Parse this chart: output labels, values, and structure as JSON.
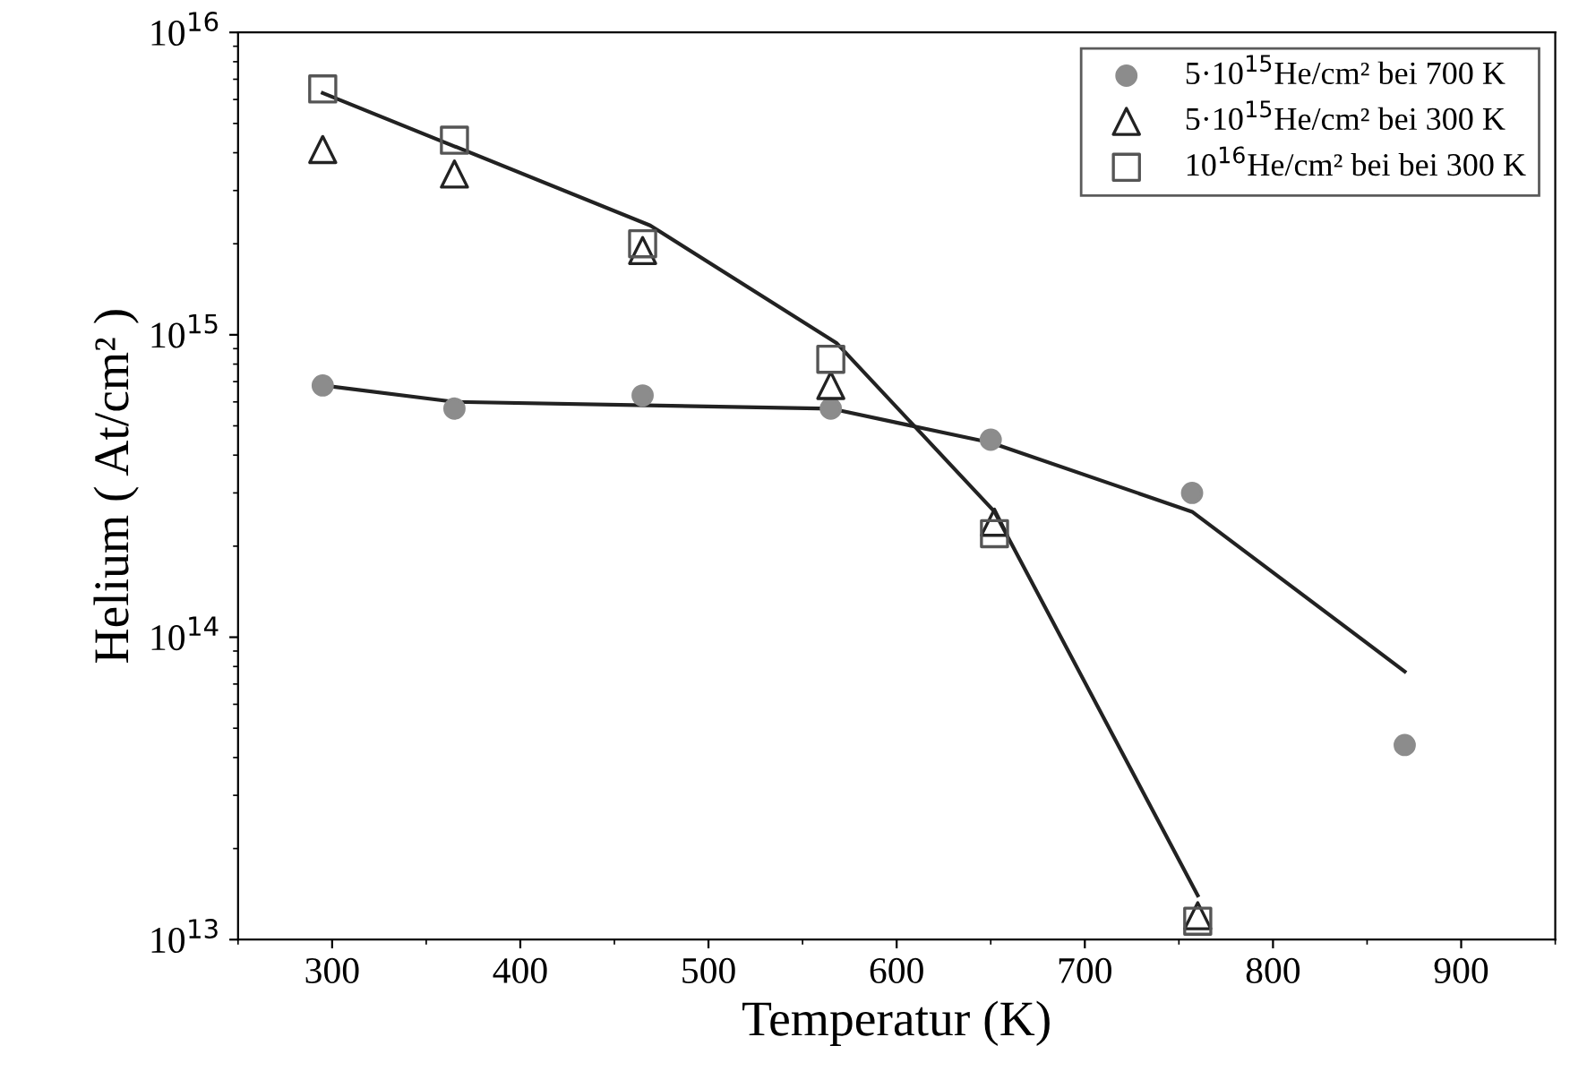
{
  "chart_data": {
    "type": "scatter",
    "xlabel": "Temperatur (K)",
    "ylabel": "Helium ( At/cm² )",
    "log": "y",
    "xlim": [
      250,
      950
    ],
    "xticks": [
      300,
      400,
      500,
      600,
      700,
      800,
      900
    ],
    "ylim": [
      10000000000000.0,
      1e+16
    ],
    "yticks": [
      {
        "value": 10000000000000.0,
        "label": "10$^{13}$"
      },
      {
        "value": 100000000000000.0,
        "label": "10$^{14}$"
      },
      {
        "value": 1000000000000000.0,
        "label": "10$^{15}$"
      },
      {
        "value": 1e+16,
        "label": "10$^{16}$"
      }
    ],
    "grid": false,
    "legend": "top right",
    "series": [
      {
        "name": "5·10$^{15}$He/cm² bei 700 K",
        "marker": "circle",
        "color": "#8c8c8c",
        "x": [
          295,
          365,
          465,
          565,
          650,
          757,
          870
        ],
        "values": [
          680000000000000.0,
          570000000000000.0,
          630000000000000.0,
          570000000000000.0,
          450000000000000.0,
          300000000000000.0,
          44000000000000.0
        ]
      },
      {
        "name": "5·10$^{15}$He/cm² bei 300 K",
        "marker": "triangle",
        "color": "#222222",
        "x": [
          295,
          365,
          465,
          565,
          652,
          760
        ],
        "values": [
          4100000000000000.0,
          3400000000000000.0,
          1900000000000000.0,
          680000000000000.0,
          240000000000000.0,
          12000000000000.0
        ]
      },
      {
        "name": "10$^{16}$He/cm² bei bei 300 K",
        "marker": "square",
        "color": "#555555",
        "x": [
          295,
          365,
          465,
          565,
          652,
          760
        ],
        "values": [
          6500000000000000.0,
          4400000000000000.0,
          2000000000000000.0,
          830000000000000.0,
          220000000000000.0,
          11500000000000.0
        ]
      },
      {
        "type": "line",
        "marker": "none",
        "color": "#222222",
        "x": [
          295,
          469,
          568,
          652,
          760
        ],
        "values": [
          6300000000000000.0,
          2300000000000000.0,
          940000000000000.0,
          260000000000000.0,
          14000000000000.0
        ]
      },
      {
        "type": "line",
        "marker": "none",
        "color": "#222222",
        "x": [
          295,
          365,
          565,
          650,
          757,
          870
        ],
        "values": [
          680000000000000.0,
          600000000000000.0,
          570000000000000.0,
          440000000000000.0,
          260000000000000.0,
          77000000000000.0
        ]
      }
    ]
  }
}
